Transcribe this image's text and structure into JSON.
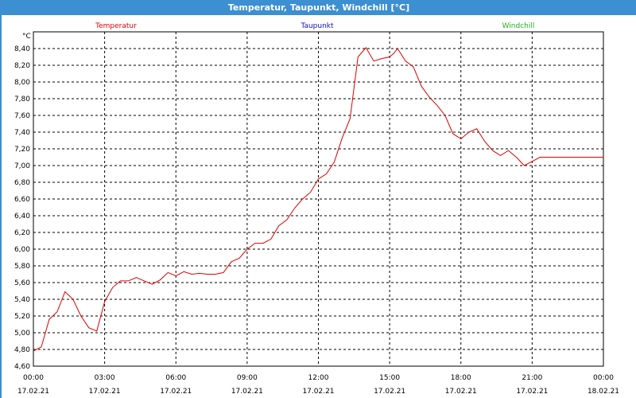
{
  "window": {
    "title": "Temperatur, Taupunkt, Windchill [°C]"
  },
  "colors": {
    "title_bar": "#3c8fd0",
    "temperature": "#e00000",
    "dewpoint": "#1010c0",
    "windchill": "#20b020"
  },
  "chart_data": {
    "type": "line",
    "title": "Temperatur, Taupunkt, Windchill [°C]",
    "ylabel": "°C",
    "ylim": [
      4.6,
      8.6
    ],
    "yticks": [
      "4,60",
      "4,80",
      "5,00",
      "5,20",
      "5,40",
      "5,60",
      "5,80",
      "6,00",
      "6,20",
      "6,40",
      "6,60",
      "6,80",
      "7,00",
      "7,20",
      "7,40",
      "7,60",
      "7,80",
      "8,00",
      "8,20",
      "8,40"
    ],
    "xlim": [
      "2021-02-17 00:00",
      "2021-02-18 00:00"
    ],
    "xticks": [
      {
        "time": "00:00",
        "date": "17.02.21"
      },
      {
        "time": "03:00",
        "date": "17.02.21"
      },
      {
        "time": "06:00",
        "date": "17.02.21"
      },
      {
        "time": "09:00",
        "date": "17.02.21"
      },
      {
        "time": "12:00",
        "date": "17.02.21"
      },
      {
        "time": "15:00",
        "date": "17.02.21"
      },
      {
        "time": "18:00",
        "date": "17.02.21"
      },
      {
        "time": "21:00",
        "date": "17.02.21"
      },
      {
        "time": "00:00",
        "date": "18.02.21"
      }
    ],
    "grid": true,
    "legend": [
      "Temperatur",
      "Taupunkt",
      "Windchill"
    ],
    "series": [
      {
        "name": "Temperatur",
        "x": [
          "00:00",
          "00:20",
          "00:40",
          "01:00",
          "01:20",
          "01:40",
          "02:00",
          "02:20",
          "02:40",
          "03:00",
          "03:20",
          "03:40",
          "04:00",
          "04:20",
          "04:40",
          "05:00",
          "05:20",
          "05:40",
          "06:00",
          "06:20",
          "06:40",
          "07:00",
          "07:20",
          "07:40",
          "08:00",
          "08:20",
          "08:40",
          "09:00",
          "09:20",
          "09:40",
          "10:00",
          "10:20",
          "10:40",
          "11:00",
          "11:20",
          "11:40",
          "12:00",
          "12:20",
          "12:40",
          "13:00",
          "13:20",
          "13:40",
          "14:00",
          "14:20",
          "14:40",
          "15:00",
          "15:10",
          "15:20",
          "15:40",
          "16:00",
          "16:20",
          "16:40",
          "17:00",
          "17:20",
          "17:40",
          "18:00",
          "18:20",
          "18:40",
          "19:00",
          "19:20",
          "19:40",
          "20:00",
          "20:20",
          "20:40",
          "21:00",
          "21:20",
          "21:40",
          "22:00",
          "22:20",
          "22:40",
          "23:00",
          "23:20",
          "23:40",
          "00:00"
        ],
        "values": [
          4.78,
          4.83,
          5.16,
          5.25,
          5.49,
          5.4,
          5.2,
          5.06,
          5.02,
          5.37,
          5.54,
          5.62,
          5.62,
          5.66,
          5.62,
          5.58,
          5.63,
          5.72,
          5.68,
          5.73,
          5.7,
          5.71,
          5.7,
          5.7,
          5.72,
          5.85,
          5.89,
          6.0,
          6.07,
          6.07,
          6.12,
          6.28,
          6.35,
          6.49,
          6.6,
          6.68,
          6.84,
          6.9,
          7.04,
          7.33,
          7.56,
          8.3,
          8.41,
          8.25,
          8.28,
          8.3,
          8.34,
          8.4,
          8.25,
          8.18,
          7.95,
          7.82,
          7.72,
          7.6,
          7.38,
          7.32,
          7.4,
          7.44,
          7.29,
          7.18,
          7.12,
          7.18,
          7.1,
          7.0,
          7.05,
          7.1,
          7.1,
          7.1,
          7.1,
          7.1,
          7.1,
          7.1,
          7.1,
          7.1
        ]
      }
    ]
  }
}
